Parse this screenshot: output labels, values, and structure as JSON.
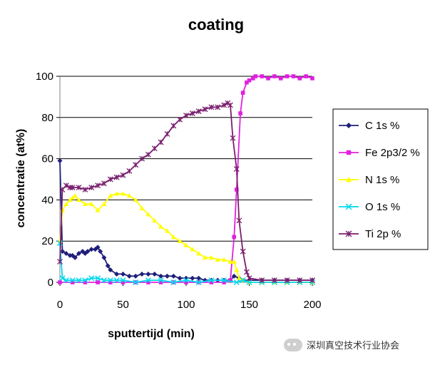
{
  "chart_data": {
    "type": "line",
    "title": "coating",
    "xlabel": "sputtertijd (min)",
    "ylabel": "concentratie (at%)",
    "xlim": [
      0,
      200
    ],
    "ylim": [
      0,
      100
    ],
    "xticks": [
      0,
      50,
      100,
      150,
      200
    ],
    "yticks": [
      0,
      20,
      40,
      60,
      80,
      100
    ],
    "grid": "horizontal",
    "legend_position": "right",
    "series": [
      {
        "name": "C 1s %",
        "color": "#1f1f7a",
        "marker": "diamond",
        "x": [
          0,
          2,
          5,
          8,
          10,
          12,
          15,
          18,
          20,
          22,
          25,
          28,
          30,
          32,
          35,
          38,
          40,
          45,
          50,
          55,
          60,
          65,
          70,
          75,
          80,
          85,
          90,
          95,
          100,
          105,
          110,
          115,
          120,
          125,
          130,
          135,
          138,
          142,
          145,
          150,
          160,
          170,
          180,
          190,
          200
        ],
        "y": [
          59,
          15,
          14,
          13,
          13,
          12,
          14,
          15,
          14,
          15,
          16,
          16,
          17,
          15,
          12,
          8,
          6,
          4,
          4,
          3,
          3,
          4,
          4,
          4,
          3,
          3,
          3,
          2,
          2,
          2,
          2,
          1,
          1,
          1,
          1,
          1,
          3,
          2,
          1,
          1,
          1,
          1,
          1,
          1,
          1
        ]
      },
      {
        "name": "Fe 2p3/2 %",
        "color": "#e020e0",
        "marker": "square",
        "x": [
          0,
          10,
          20,
          30,
          40,
          50,
          60,
          70,
          80,
          90,
          100,
          110,
          120,
          130,
          135,
          138,
          140,
          143,
          145,
          148,
          150,
          153,
          155,
          160,
          165,
          170,
          175,
          180,
          185,
          190,
          195,
          200
        ],
        "y": [
          0,
          0,
          0,
          0,
          0,
          0,
          0,
          0,
          0,
          0,
          0,
          0,
          0,
          0,
          1,
          22,
          45,
          82,
          92,
          97,
          98,
          99,
          100,
          100,
          99,
          100,
          99,
          100,
          100,
          99,
          100,
          99
        ]
      },
      {
        "name": "N 1s %",
        "color": "#ffff00",
        "marker": "triangle",
        "x": [
          0,
          2,
          5,
          8,
          10,
          12,
          15,
          20,
          25,
          30,
          35,
          40,
          45,
          50,
          55,
          60,
          65,
          70,
          75,
          80,
          85,
          90,
          95,
          100,
          105,
          110,
          115,
          120,
          125,
          130,
          135,
          138,
          140,
          142,
          145,
          150,
          160,
          170,
          180,
          190,
          200
        ],
        "y": [
          20,
          35,
          38,
          40,
          41,
          42,
          40,
          38,
          38,
          35,
          38,
          42,
          43,
          43,
          42,
          40,
          36,
          33,
          30,
          27,
          25,
          22,
          20,
          18,
          16,
          14,
          12,
          12,
          11,
          11,
          10,
          10,
          6,
          2,
          1,
          0,
          0,
          0,
          0,
          0,
          0
        ]
      },
      {
        "name": "O 1s %",
        "color": "#00d8f0",
        "marker": "x",
        "x": [
          0,
          2,
          5,
          10,
          15,
          20,
          25,
          30,
          35,
          40,
          45,
          50,
          60,
          70,
          80,
          90,
          100,
          110,
          120,
          130,
          140,
          145,
          150,
          160,
          170,
          180,
          190,
          200
        ],
        "y": [
          19,
          2,
          1,
          1,
          1,
          1,
          2,
          2,
          1,
          1,
          1,
          1,
          0,
          1,
          1,
          0,
          1,
          0,
          1,
          1,
          0,
          1,
          0,
          0,
          0,
          0,
          0,
          0
        ]
      },
      {
        "name": "Ti 2p %",
        "color": "#7a1f6e",
        "marker": "star",
        "x": [
          0,
          2,
          5,
          8,
          10,
          15,
          20,
          25,
          30,
          35,
          40,
          45,
          50,
          55,
          60,
          65,
          70,
          75,
          80,
          85,
          90,
          95,
          100,
          105,
          110,
          115,
          120,
          125,
          130,
          133,
          135,
          137,
          140,
          142,
          145,
          148,
          150,
          160,
          170,
          180,
          190,
          200
        ],
        "y": [
          10,
          45,
          47,
          46,
          46,
          46,
          45,
          46,
          47,
          48,
          50,
          51,
          52,
          54,
          57,
          60,
          62,
          65,
          68,
          72,
          76,
          79,
          81,
          82,
          83,
          84,
          85,
          85,
          86,
          87,
          86,
          70,
          55,
          30,
          15,
          5,
          2,
          1,
          1,
          1,
          1,
          1
        ]
      }
    ]
  },
  "watermark": {
    "text": "深圳真空技术行业协会",
    "icon": "wechat-icon"
  }
}
